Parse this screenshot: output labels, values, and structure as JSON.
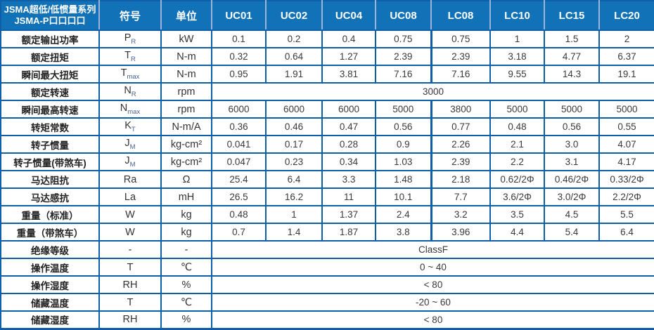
{
  "colors": {
    "header_bg": "#1272B8",
    "border": "#0E5FA8",
    "header_divider": "#9DB3DC",
    "header_text": "#FFFFFF",
    "body_text": "#333333"
  },
  "table": {
    "title": {
      "line1": "JSMA超低/低惯量系列",
      "line2": "JSMA-P口口口口"
    },
    "header": {
      "symbol_label": "符号",
      "unit_label": "单位",
      "model_columns": [
        "UC01",
        "UC02",
        "UC04",
        "UC08",
        "LC08",
        "LC10",
        "LC15",
        "LC20"
      ]
    },
    "rows": [
      {
        "label": "额定输出功率",
        "symbol": "P",
        "sub": "R",
        "unit": "kW",
        "values": [
          "0.1",
          "0.2",
          "0.4",
          "0.75",
          "0.75",
          "1",
          "1.5",
          "2"
        ]
      },
      {
        "label": "额定扭矩",
        "symbol": "T",
        "sub": "R",
        "unit": "N-m",
        "values": [
          "0.32",
          "0.64",
          "1.27",
          "2.39",
          "2.39",
          "3.18",
          "4.77",
          "6.37"
        ]
      },
      {
        "label": "瞬间最大扭矩",
        "symbol": "T",
        "sub": "max",
        "unit": "N-m",
        "values": [
          "0.95",
          "1.91",
          "3.81",
          "7.16",
          "7.16",
          "9.55",
          "14.3",
          "19.1"
        ]
      },
      {
        "label": "额定转速",
        "symbol": "N",
        "sub": "R",
        "unit": "rpm",
        "merged": "3000"
      },
      {
        "label": "瞬间最高转速",
        "symbol": "N",
        "sub": "max",
        "unit": "rpm",
        "values": [
          "6000",
          "6000",
          "6000",
          "5000",
          "3800",
          "5000",
          "5000",
          "5000"
        ]
      },
      {
        "label": "转矩常数",
        "symbol": "K",
        "sub": "T",
        "unit": "N-m/A",
        "values": [
          "0.36",
          "0.46",
          "0.47",
          "0.56",
          "0.77",
          "0.48",
          "0.56",
          "0.55"
        ]
      },
      {
        "label": "转子惯量",
        "symbol": "J",
        "sub": "M",
        "unit": "kg-cm²",
        "values": [
          "0.041",
          "0.17",
          "0.28",
          "0.9",
          "2.26",
          "2.1",
          "3.0",
          "4.07"
        ]
      },
      {
        "label": "转子惯量(带煞车)",
        "symbol": "J",
        "sub": "M",
        "unit": "kg-cm²",
        "values": [
          "0.047",
          "0.23",
          "0.34",
          "1.03",
          "2.39",
          "2.2",
          "3.1",
          "4.17"
        ]
      },
      {
        "label": "马达阻抗",
        "symbol": "Ra",
        "sub": "",
        "unit": "Ω",
        "values": [
          "25.4",
          "6.4",
          "3.3",
          "1.48",
          "2.18",
          "0.62/2Φ",
          "0.46/2Φ",
          "0.33/2Φ"
        ]
      },
      {
        "label": "马达感抗",
        "symbol": "La",
        "sub": "",
        "unit": "mH",
        "values": [
          "26.5",
          "16.2",
          "11",
          "10.1",
          "7.7",
          "3.6/2Φ",
          "3.0/2Φ",
          "2.2/2Φ"
        ]
      },
      {
        "label": "重量（标准）",
        "symbol": "W",
        "sub": "",
        "unit": "kg",
        "values": [
          "0.48",
          "1",
          "1.37",
          "2.4",
          "3.2",
          "3.5",
          "4.5",
          "5.5"
        ]
      },
      {
        "label": "重量（带煞车）",
        "symbol": "W",
        "sub": "",
        "unit": "kg",
        "values": [
          "0.7",
          "1.4",
          "1.87",
          "3.8",
          "3.96",
          "4.4",
          "5.4",
          "6.4"
        ]
      },
      {
        "label": "绝缘等级",
        "symbol": "-",
        "sub": "",
        "unit": "-",
        "merged": "ClassF"
      },
      {
        "label": "操作温度",
        "symbol": "T",
        "sub": "",
        "unit": "℃",
        "merged": "0 ~ 40"
      },
      {
        "label": "操作湿度",
        "symbol": "RH",
        "sub": "",
        "unit": "%",
        "merged": "< 80"
      },
      {
        "label": "储藏温度",
        "symbol": "T",
        "sub": "",
        "unit": "℃",
        "merged": "-20 ~ 60"
      },
      {
        "label": "储藏湿度",
        "symbol": "RH",
        "sub": "",
        "unit": "%",
        "merged": "< 80"
      }
    ]
  }
}
